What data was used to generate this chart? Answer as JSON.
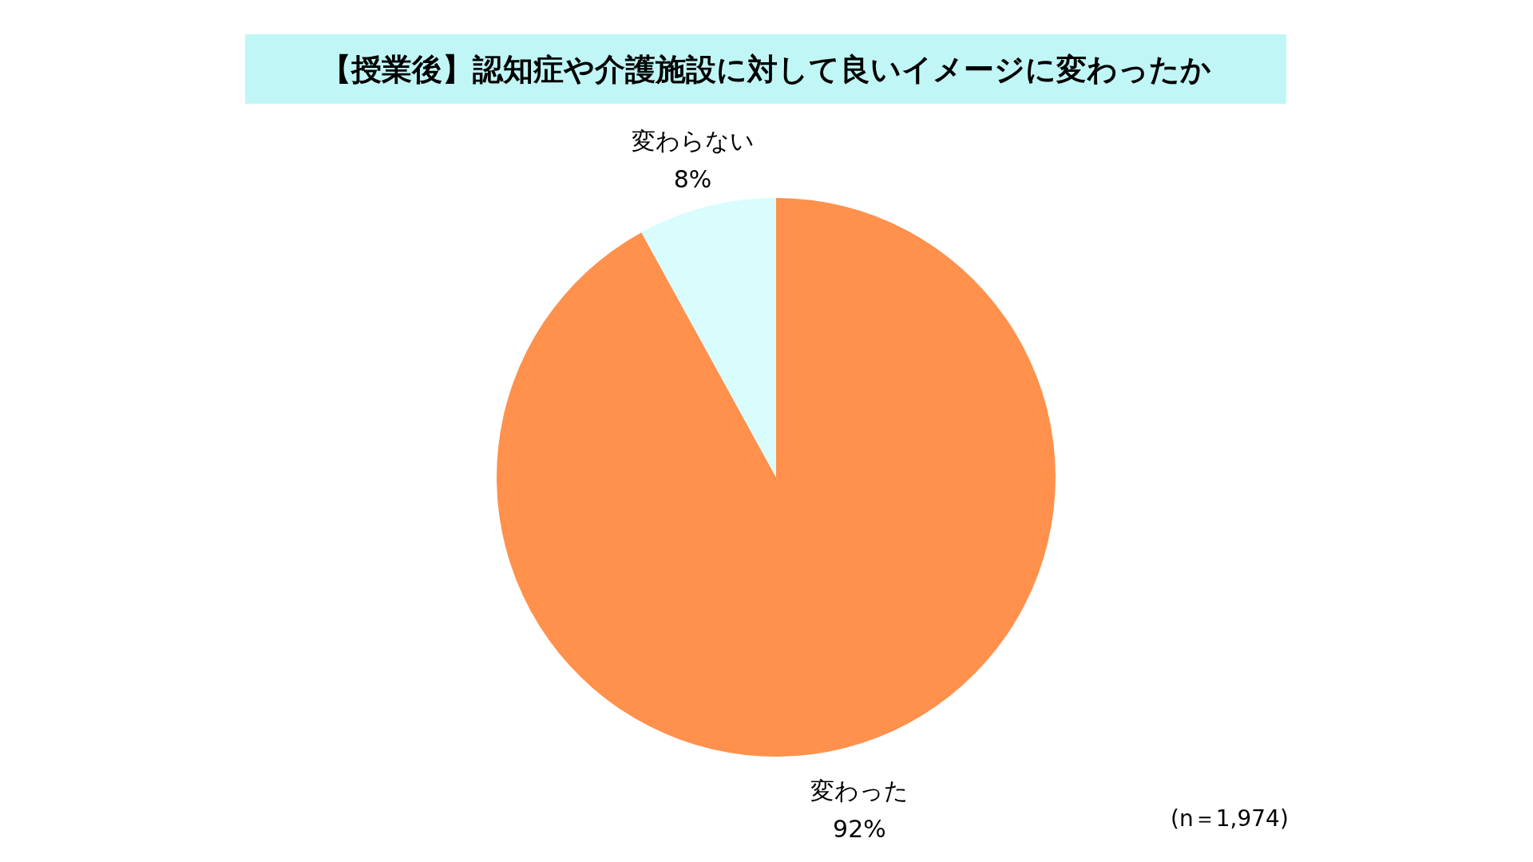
{
  "chart_data": {
    "type": "pie",
    "title": "【授業後】認知症や介護施設に対して良いイメージに変わったか",
    "categories": [
      "変わった",
      "変わらない"
    ],
    "values": [
      92,
      8
    ],
    "colors": [
      "#ff914d",
      "#d9fcfd"
    ],
    "value_labels": [
      "92%",
      "8%"
    ],
    "annotations": [
      "(n＝1,974)"
    ]
  }
}
